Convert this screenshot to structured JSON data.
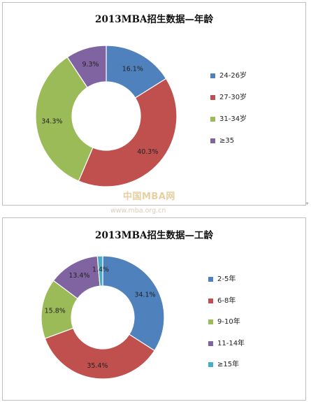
{
  "palette": {
    "blue": "#4f81bd",
    "red": "#c0504d",
    "green": "#9bbb59",
    "purple": "#8064a2",
    "cyan": "#4bacc6"
  },
  "watermark": {
    "logo": "中国MBA网",
    "url": "www.mba.org.cn"
  },
  "corner_mark": "+",
  "chart_data": [
    {
      "type": "pie",
      "title": "2013MBA招生数据—年龄",
      "categories": [
        "24-26岁",
        "27-30岁",
        "31-34岁",
        "≥35"
      ],
      "values": [
        16.1,
        40.3,
        34.3,
        9.3
      ],
      "labels": [
        "16.1%",
        "40.3%",
        "34.3%",
        "9.3%"
      ],
      "colors": [
        "#4f81bd",
        "#c0504d",
        "#9bbb59",
        "#8064a2"
      ],
      "donut": true,
      "legend": "right"
    },
    {
      "type": "pie",
      "title": "2013MBA招生数据—工龄",
      "categories": [
        "2-5年",
        "6-8年",
        "9-10年",
        "11-14年",
        "≥15年"
      ],
      "values": [
        34.1,
        35.4,
        15.8,
        13.4,
        1.4
      ],
      "labels": [
        "34.1%",
        "35.4%",
        "15.8%",
        "13.4%",
        "1.4%"
      ],
      "colors": [
        "#4f81bd",
        "#c0504d",
        "#9bbb59",
        "#8064a2",
        "#4bacc6"
      ],
      "donut": true,
      "legend": "right"
    }
  ]
}
